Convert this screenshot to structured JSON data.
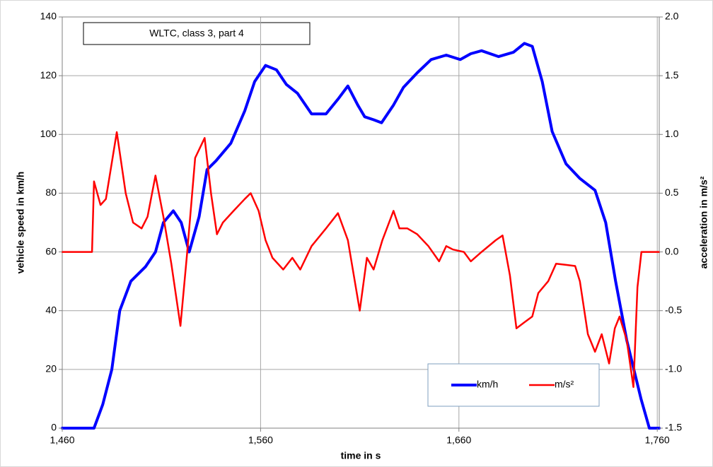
{
  "chart_data": {
    "type": "line",
    "title": "WLTC, class 3, part 4",
    "x_label": "time in s",
    "y_label": "vehicle speed in km/h",
    "y2_label": "acceleration in m/s²",
    "xlim": [
      1460,
      1761
    ],
    "xticks": [
      {
        "value": 1460,
        "label": "1,460"
      },
      {
        "value": 1560,
        "label": "1,560"
      },
      {
        "value": 1660,
        "label": "1,660"
      },
      {
        "value": 1760,
        "label": "1,760"
      }
    ],
    "ylim": [
      0,
      140
    ],
    "yticks": [
      0,
      20,
      40,
      60,
      80,
      100,
      120,
      140
    ],
    "y2lim": [
      -1.5,
      2.0
    ],
    "y2ticks": [
      {
        "value": -1.5,
        "label": "-1.5"
      },
      {
        "value": -1.0,
        "label": "-1.0"
      },
      {
        "value": -0.5,
        "label": "-0.5"
      },
      {
        "value": 0,
        "label": "0.0"
      },
      {
        "value": 0.5,
        "label": "0.5"
      },
      {
        "value": 1.0,
        "label": "1.0"
      },
      {
        "value": 1.5,
        "label": "1.5"
      },
      {
        "value": 2.0,
        "label": "2.0"
      }
    ],
    "grid": true,
    "series": [
      {
        "name": "km/h",
        "color": "#0000ff",
        "x": [
          1460,
          1476,
          1480.4,
          1485,
          1489,
          1494.6,
          1502,
          1507,
          1511,
          1516,
          1520,
          1524,
          1529,
          1533,
          1537.5,
          1545,
          1552,
          1557,
          1562.5,
          1568,
          1573,
          1578.6,
          1585.7,
          1593,
          1599,
          1604,
          1609,
          1612.5,
          1617,
          1621,
          1627,
          1632,
          1639,
          1646,
          1653.6,
          1660.7,
          1666,
          1671.4,
          1680,
          1687.5,
          1693,
          1697,
          1702,
          1707,
          1714,
          1721,
          1728.6,
          1734,
          1739,
          1744.6,
          1751.8,
          1756,
          1761
        ],
        "values": [
          0,
          0,
          8,
          20,
          40,
          50,
          55,
          60,
          70,
          74,
          70,
          60,
          72,
          88,
          91,
          97,
          108,
          118,
          123.5,
          122,
          117,
          114,
          107,
          107,
          112,
          116.5,
          110,
          106,
          105,
          104,
          110,
          116,
          121,
          125.5,
          127,
          125.5,
          127.5,
          128.5,
          126.5,
          128,
          131,
          130,
          118,
          101,
          90,
          85,
          81,
          70,
          50,
          30,
          10,
          0,
          0
        ]
      },
      {
        "name": "m/s²",
        "color": "#ff0000",
        "axis": "y2",
        "x": [
          1460,
          1475,
          1476,
          1479.3,
          1482,
          1487.5,
          1492,
          1495.7,
          1500,
          1503,
          1507,
          1511,
          1515,
          1519.6,
          1523,
          1527,
          1531.8,
          1535,
          1538,
          1541,
          1546.4,
          1552,
          1555,
          1559,
          1562.5,
          1566,
          1571.4,
          1576,
          1580,
          1585.7,
          1593,
          1599,
          1604,
          1607,
          1610,
          1613.6,
          1617,
          1621.4,
          1627,
          1630,
          1634,
          1639,
          1644.6,
          1650,
          1653.6,
          1657,
          1662.5,
          1666,
          1671.4,
          1678.6,
          1682,
          1685.7,
          1689,
          1693,
          1697,
          1700,
          1705,
          1709,
          1714,
          1718.6,
          1721,
          1725,
          1728.6,
          1732,
          1735.7,
          1738.6,
          1741,
          1744.6,
          1748,
          1750,
          1752,
          1761
        ],
        "values": [
          0,
          0,
          0.6,
          0.4,
          0.45,
          1.02,
          0.5,
          0.25,
          0.2,
          0.3,
          0.65,
          0.3,
          -0.1,
          -0.63,
          0,
          0.8,
          0.97,
          0.5,
          0.15,
          0.25,
          0.35,
          0.45,
          0.5,
          0.35,
          0.1,
          -0.05,
          -0.15,
          -0.05,
          -0.15,
          0.05,
          0.2,
          0.33,
          0.1,
          -0.2,
          -0.5,
          -0.05,
          -0.15,
          0.1,
          0.35,
          0.2,
          0.2,
          0.15,
          0.05,
          -0.08,
          0.05,
          0.02,
          0,
          -0.08,
          0,
          0.1,
          0.14,
          -0.2,
          -0.65,
          -0.6,
          -0.55,
          -0.35,
          -0.25,
          -0.1,
          -0.11,
          -0.12,
          -0.25,
          -0.7,
          -0.85,
          -0.7,
          -0.95,
          -0.65,
          -0.55,
          -0.75,
          -1.15,
          -0.3,
          0,
          0
        ]
      }
    ]
  }
}
